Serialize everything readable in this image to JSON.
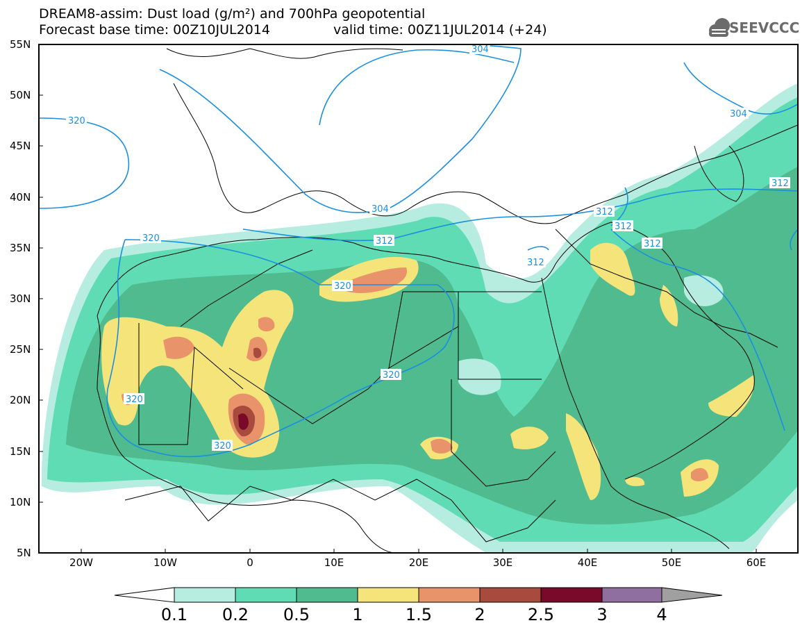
{
  "header": {
    "title": "DREAM8-assim: Dust load (g/m²) and 700hPa geopotential",
    "base_time": "Forecast base time: 00Z10JUL2014",
    "valid_time": "valid time: 00Z11JUL2014 (+24)"
  },
  "logo": {
    "text": "SEEVCCC",
    "icon": "cloud-icon"
  },
  "axes": {
    "lat_labels": [
      "55N",
      "50N",
      "45N",
      "40N",
      "35N",
      "30N",
      "25N",
      "20N",
      "15N",
      "10N",
      "5N"
    ],
    "lon_labels": [
      "20W",
      "10W",
      "0",
      "10E",
      "20E",
      "30E",
      "40E",
      "50E",
      "60E"
    ],
    "lat_range": [
      5,
      55
    ],
    "lon_range": [
      -25,
      65
    ]
  },
  "colorbar": {
    "levels": [
      "0.1",
      "0.2",
      "0.5",
      "1",
      "1.5",
      "2",
      "2.5",
      "3",
      "4"
    ],
    "colors": [
      "#ffffff",
      "#b7ece0",
      "#5fdcb4",
      "#4fbb8f",
      "#f5e47a",
      "#e9936b",
      "#a94a3e",
      "#7a0a2a",
      "#8e6fa0",
      "#a0a0a0"
    ]
  },
  "contours": {
    "color": "#1a8fe0",
    "labels": [
      "304",
      "320",
      "304",
      "312",
      "312",
      "312",
      "312",
      "312",
      "320",
      "312",
      "320",
      "320",
      "320",
      "304",
      "320"
    ]
  }
}
